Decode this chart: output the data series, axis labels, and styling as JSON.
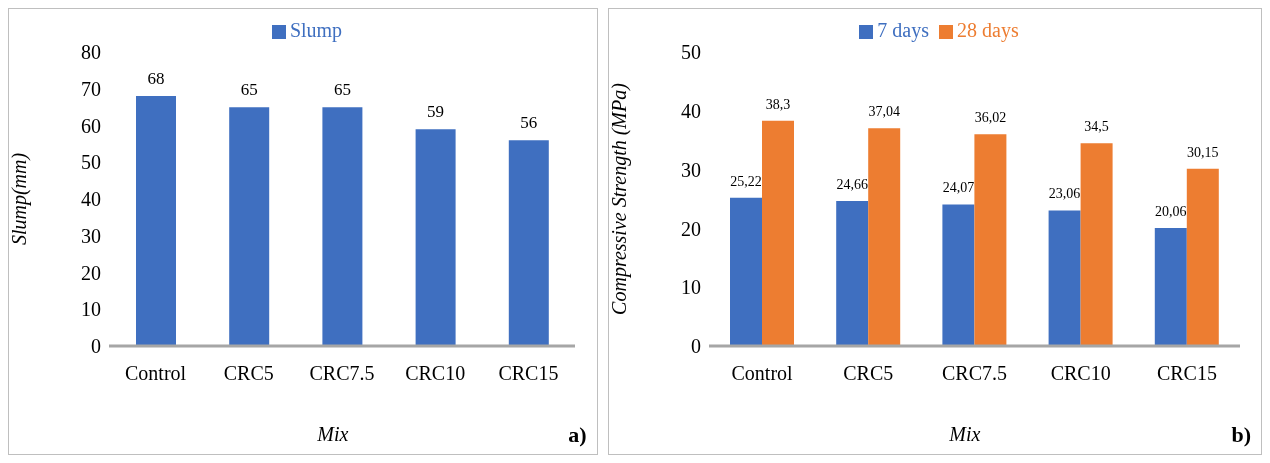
{
  "chart_data": [
    {
      "type": "bar",
      "categories": [
        "Control",
        "CRC5",
        "CRC7.5",
        "CRC10",
        "CRC15"
      ],
      "series": [
        {
          "name": "Slump",
          "color": "#3f6fc0",
          "values": [
            68,
            65,
            65,
            59,
            56
          ]
        }
      ],
      "ylabel": "Slump(mm)",
      "xlabel": "Mix",
      "ylim": [
        0,
        80
      ],
      "yticks": [
        0,
        10,
        20,
        30,
        40,
        50,
        60,
        70,
        80
      ],
      "data_labels": true,
      "legend": "top",
      "grid": false,
      "annotations": [
        "a)"
      ]
    },
    {
      "type": "bar",
      "categories": [
        "Control",
        "CRC5",
        "CRC7.5",
        "CRC10",
        "CRC15"
      ],
      "series": [
        {
          "name": "7 days",
          "color": "#3f6fc0",
          "values": [
            25.22,
            24.66,
            24.07,
            23.06,
            20.06
          ],
          "value_labels": [
            "25,22",
            "24,66",
            "24,07",
            "23,06",
            "20,06"
          ]
        },
        {
          "name": "28 days",
          "color": "#ed7d31",
          "values": [
            38.3,
            37.04,
            36.02,
            34.5,
            30.15
          ],
          "value_labels": [
            "38,3",
            "37,04",
            "36,02",
            "34,5",
            "30,15"
          ]
        }
      ],
      "ylabel": "Compressive Strength (MPa)",
      "xlabel": "Mix",
      "ylim": [
        0,
        50
      ],
      "yticks": [
        0,
        10,
        20,
        30,
        40,
        50
      ],
      "legend": "top",
      "grid": false,
      "annotations": [
        "b)"
      ]
    }
  ]
}
